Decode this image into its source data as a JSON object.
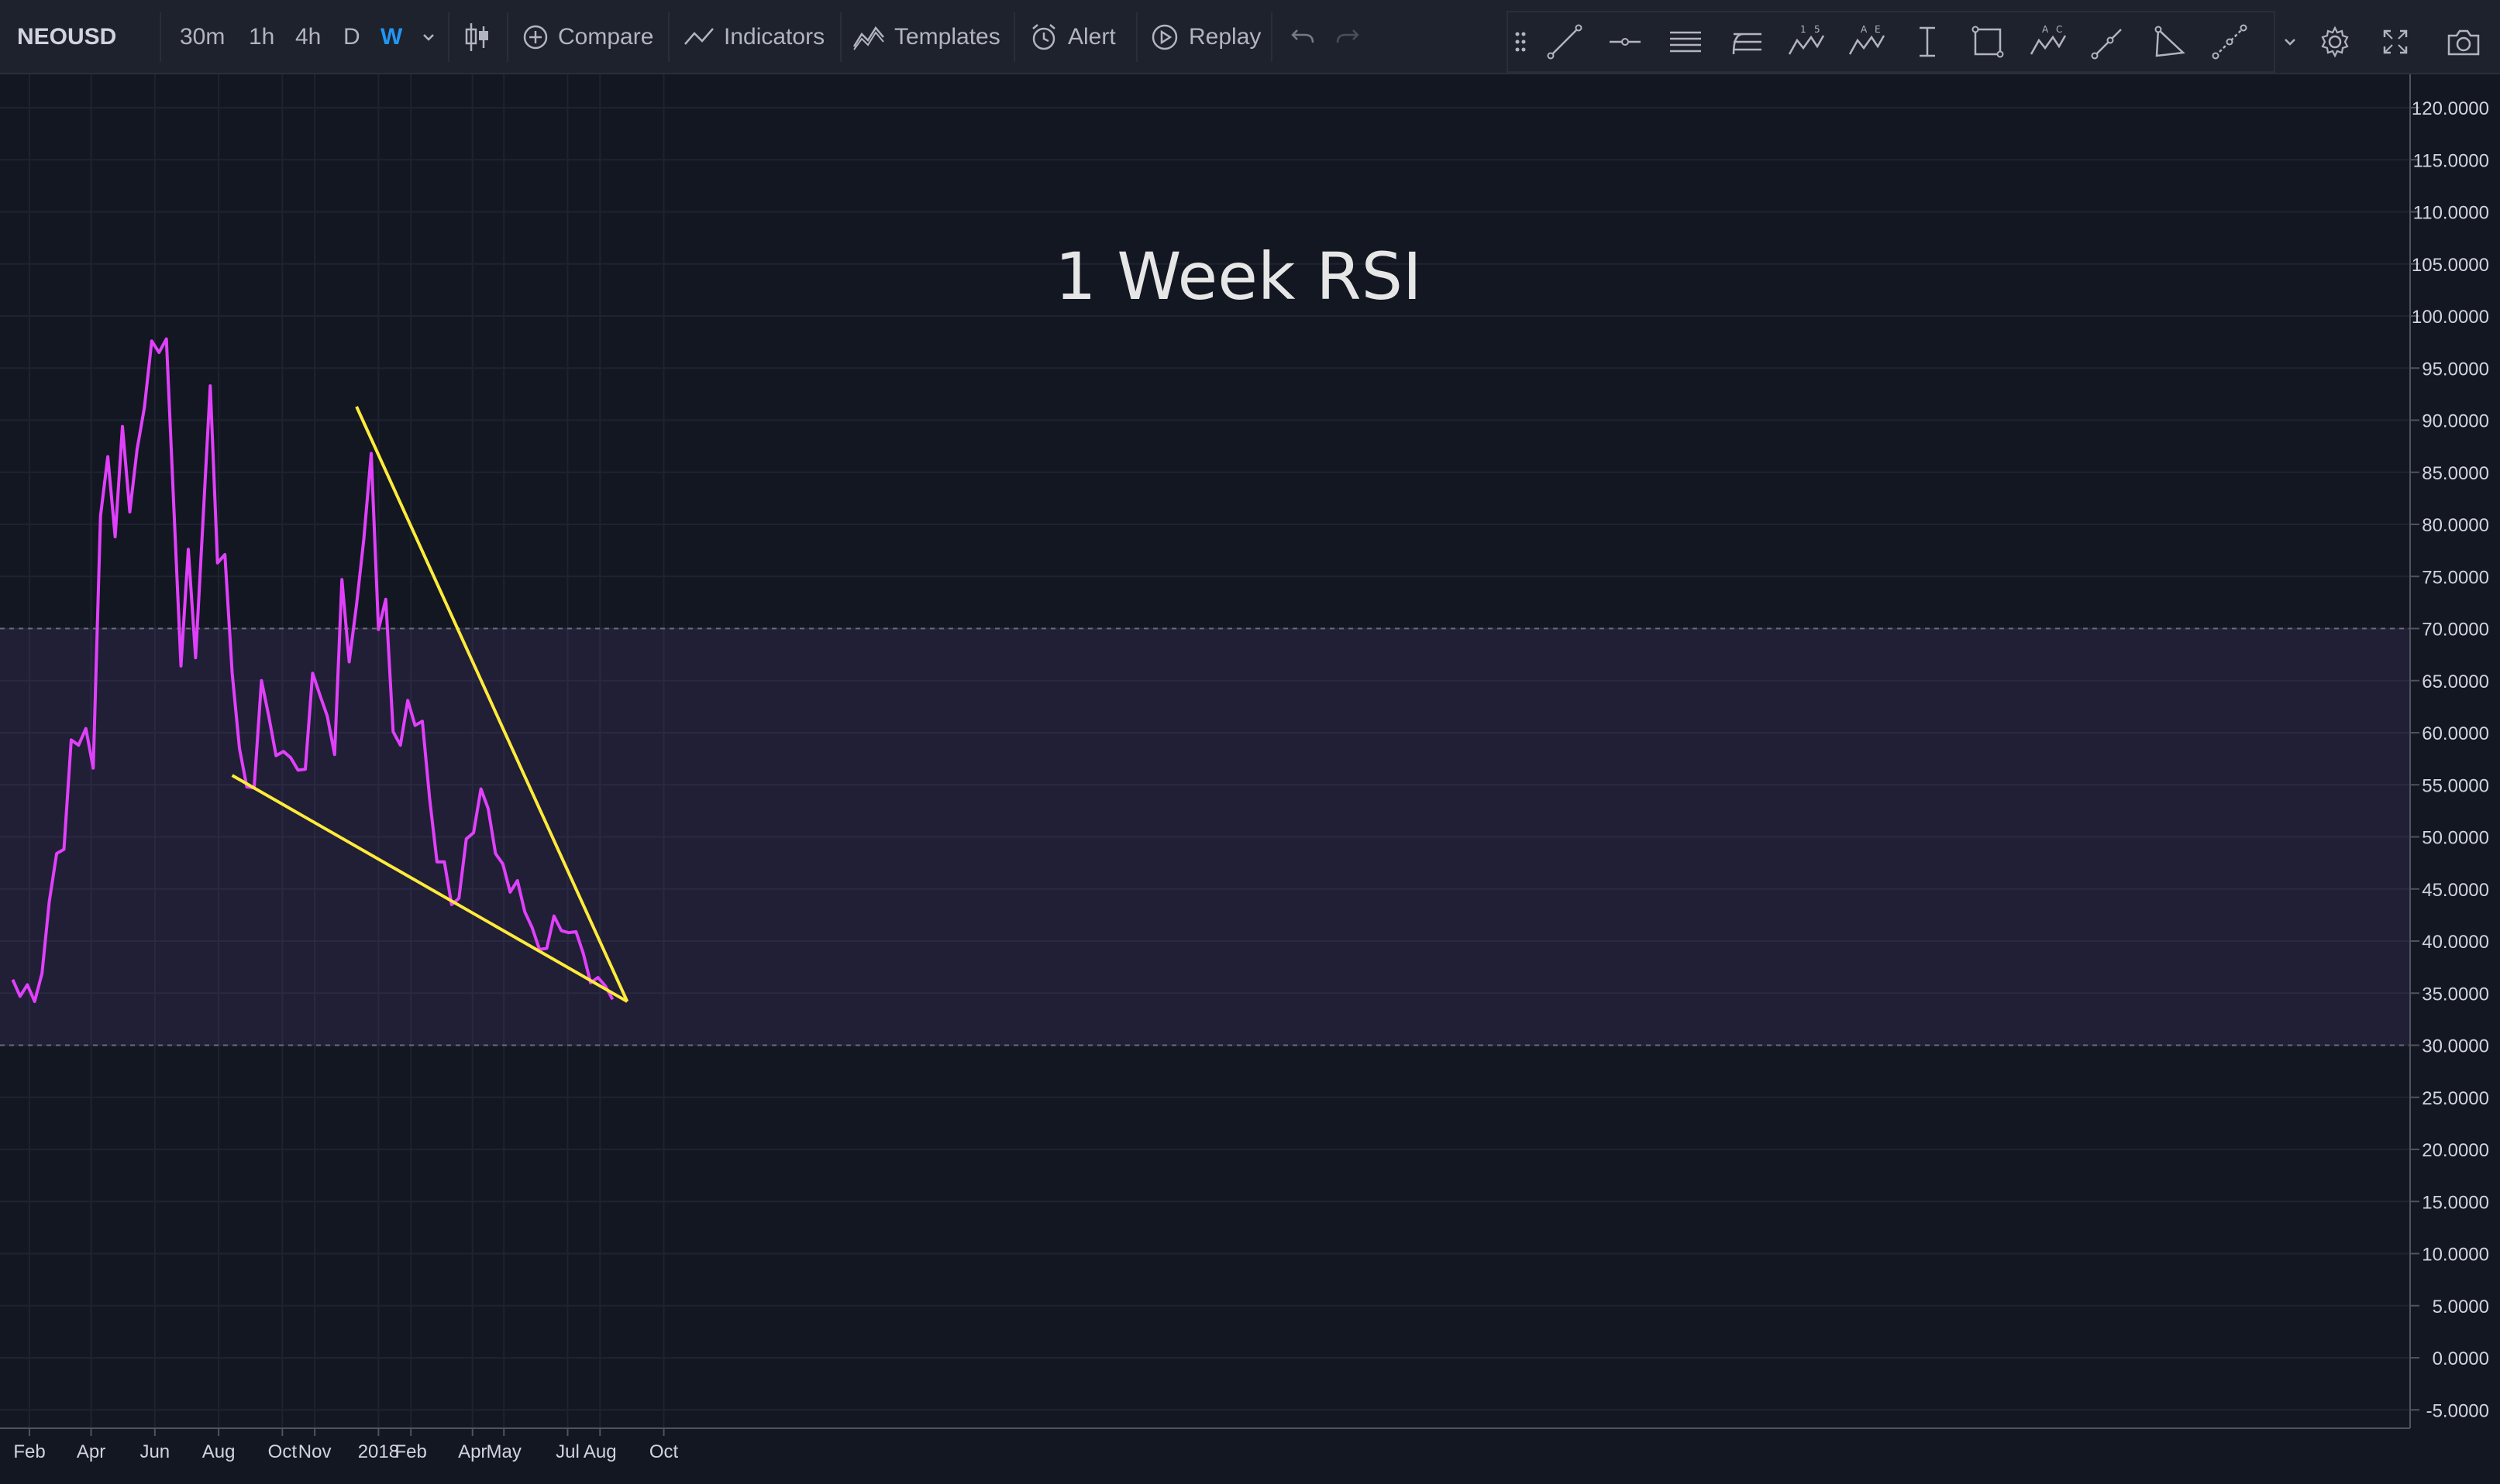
{
  "toolbar": {
    "symbol": "NEOUSD",
    "intervals": [
      "30m",
      "1h",
      "4h",
      "D",
      "W"
    ],
    "active_interval": "W",
    "compare_label": "Compare",
    "indicators_label": "Indicators",
    "templates_label": "Templates",
    "alert_label": "Alert",
    "replay_label": "Replay",
    "icons": [
      "chevron-down-icon",
      "candles-icon",
      "plus-circle-icon",
      "indicators-icon",
      "templates-icon",
      "alert-clock-icon",
      "replay-icon",
      "undo-icon",
      "redo-icon"
    ]
  },
  "drawing_tools": [
    "grip-icon",
    "trend-line-icon",
    "horizontal-ray-icon",
    "parallel-lines-icon",
    "pitchfork-icon",
    "elliott-wave-icon",
    "abcde-pattern-icon",
    "date-range-icon",
    "rectangle-icon",
    "abc-pattern-icon",
    "arrow-icon",
    "triangle-icon",
    "projection-icon"
  ],
  "right_tools": [
    "chevron-down-icon",
    "settings-gear-icon",
    "fullscreen-icon",
    "camera-icon"
  ],
  "chart_data": {
    "type": "line",
    "title": "1 Week RSI",
    "series": [
      {
        "color": "#e040fb",
        "x": [
          "2017-01-16",
          "2017-01-23",
          "2017-01-30",
          "2017-02-06",
          "2017-02-13",
          "2017-02-20",
          "2017-02-27",
          "2017-03-06",
          "2017-03-13",
          "2017-03-20",
          "2017-03-27",
          "2017-04-03",
          "2017-04-10",
          "2017-04-17",
          "2017-04-24",
          "2017-05-01",
          "2017-05-08",
          "2017-05-15",
          "2017-05-22",
          "2017-05-29",
          "2017-06-05",
          "2017-06-12",
          "2017-06-19",
          "2017-06-26",
          "2017-07-03",
          "2017-07-10",
          "2017-07-17",
          "2017-07-24",
          "2017-07-31",
          "2017-08-07",
          "2017-08-14",
          "2017-08-21",
          "2017-08-28",
          "2017-09-04",
          "2017-09-11",
          "2017-09-18",
          "2017-09-25",
          "2017-10-02",
          "2017-10-09",
          "2017-10-16",
          "2017-10-23",
          "2017-10-30",
          "2017-11-06",
          "2017-11-13",
          "2017-11-20",
          "2017-11-27",
          "2017-12-04",
          "2017-12-11",
          "2017-12-18",
          "2017-12-25",
          "2018-01-01",
          "2018-01-08",
          "2018-01-15",
          "2018-01-22",
          "2018-01-29",
          "2018-02-05",
          "2018-02-12",
          "2018-02-19",
          "2018-02-26",
          "2018-03-05",
          "2018-03-12",
          "2018-03-19",
          "2018-03-26",
          "2018-04-02",
          "2018-04-09",
          "2018-04-16",
          "2018-04-23",
          "2018-04-30",
          "2018-05-07",
          "2018-05-14",
          "2018-05-21",
          "2018-05-28",
          "2018-06-04",
          "2018-06-11",
          "2018-06-18",
          "2018-06-25",
          "2018-07-02",
          "2018-07-09",
          "2018-07-16",
          "2018-07-23",
          "2018-07-30",
          "2018-08-06",
          "2018-08-13"
        ],
        "values": [
          36.3,
          34.7,
          35.8,
          34.2,
          36.9,
          43.8,
          48.4,
          48.8,
          59.3,
          58.8,
          60.4,
          56.6,
          80.8,
          86.5,
          78.8,
          89.4,
          81.2,
          87.2,
          91.2,
          97.6,
          96.5,
          97.8,
          82.0,
          66.4,
          77.6,
          67.2,
          80.3,
          93.3,
          76.3,
          77.1,
          65.7,
          58.5,
          54.8,
          54.7,
          65.0,
          61.6,
          57.8,
          58.2,
          57.6,
          56.4,
          56.5,
          65.7,
          63.6,
          61.6,
          57.9,
          74.7,
          66.8,
          72.3,
          78.6,
          86.8,
          69.9,
          72.8,
          60.1,
          58.8,
          63.1,
          60.7,
          61.1,
          53.6,
          47.6,
          47.6,
          43.5,
          44.1,
          49.8,
          50.4,
          54.6,
          52.7,
          48.4,
          47.4,
          44.7,
          45.8,
          42.8,
          41.3,
          39.2,
          39.3,
          42.4,
          41.0,
          40.8,
          40.9,
          38.8,
          36.0,
          36.5,
          35.7,
          34.4
        ]
      }
    ],
    "trendlines": [
      {
        "color": "#ffeb3b",
        "from": {
          "x": "2017-08-14",
          "y": 55.9
        },
        "to": {
          "x": "2018-08-27",
          "y": 34.2
        }
      },
      {
        "color": "#ffeb3b",
        "from": {
          "x": "2017-12-11",
          "y": 91.3
        },
        "to": {
          "x": "2018-08-27",
          "y": 34.2
        }
      }
    ],
    "bands": [
      {
        "from": 30,
        "to": 70,
        "color": "#7e57c2"
      }
    ],
    "ylim": [
      -6,
      122
    ],
    "y_ticks": [
      "120.0000",
      "115.0000",
      "110.0000",
      "105.0000",
      "100.0000",
      "95.0000",
      "90.0000",
      "85.0000",
      "80.0000",
      "75.0000",
      "70.0000",
      "65.0000",
      "60.0000",
      "55.0000",
      "50.0000",
      "45.0000",
      "40.0000",
      "35.0000",
      "30.0000",
      "25.0000",
      "20.0000",
      "15.0000",
      "10.0000",
      "5.0000",
      "0.0000",
      "-5.0000"
    ],
    "x_ticks": [
      {
        "label": "Feb",
        "date": "2017-02-01"
      },
      {
        "label": "Apr",
        "date": "2017-04-01"
      },
      {
        "label": "Jun",
        "date": "2017-06-01"
      },
      {
        "label": "Aug",
        "date": "2017-08-01"
      },
      {
        "label": "Oct",
        "date": "2017-10-01"
      },
      {
        "label": "Nov",
        "date": "2017-11-01"
      },
      {
        "label": "2018",
        "date": "2018-01-01"
      },
      {
        "label": "Feb",
        "date": "2018-02-01"
      },
      {
        "label": "Apr",
        "date": "2018-04-01"
      },
      {
        "label": "May",
        "date": "2018-05-01"
      },
      {
        "label": "Jul",
        "date": "2018-07-01"
      },
      {
        "label": "Aug",
        "date": "2018-08-01"
      },
      {
        "label": "Oct",
        "date": "2018-10-01"
      }
    ],
    "grid": true
  }
}
